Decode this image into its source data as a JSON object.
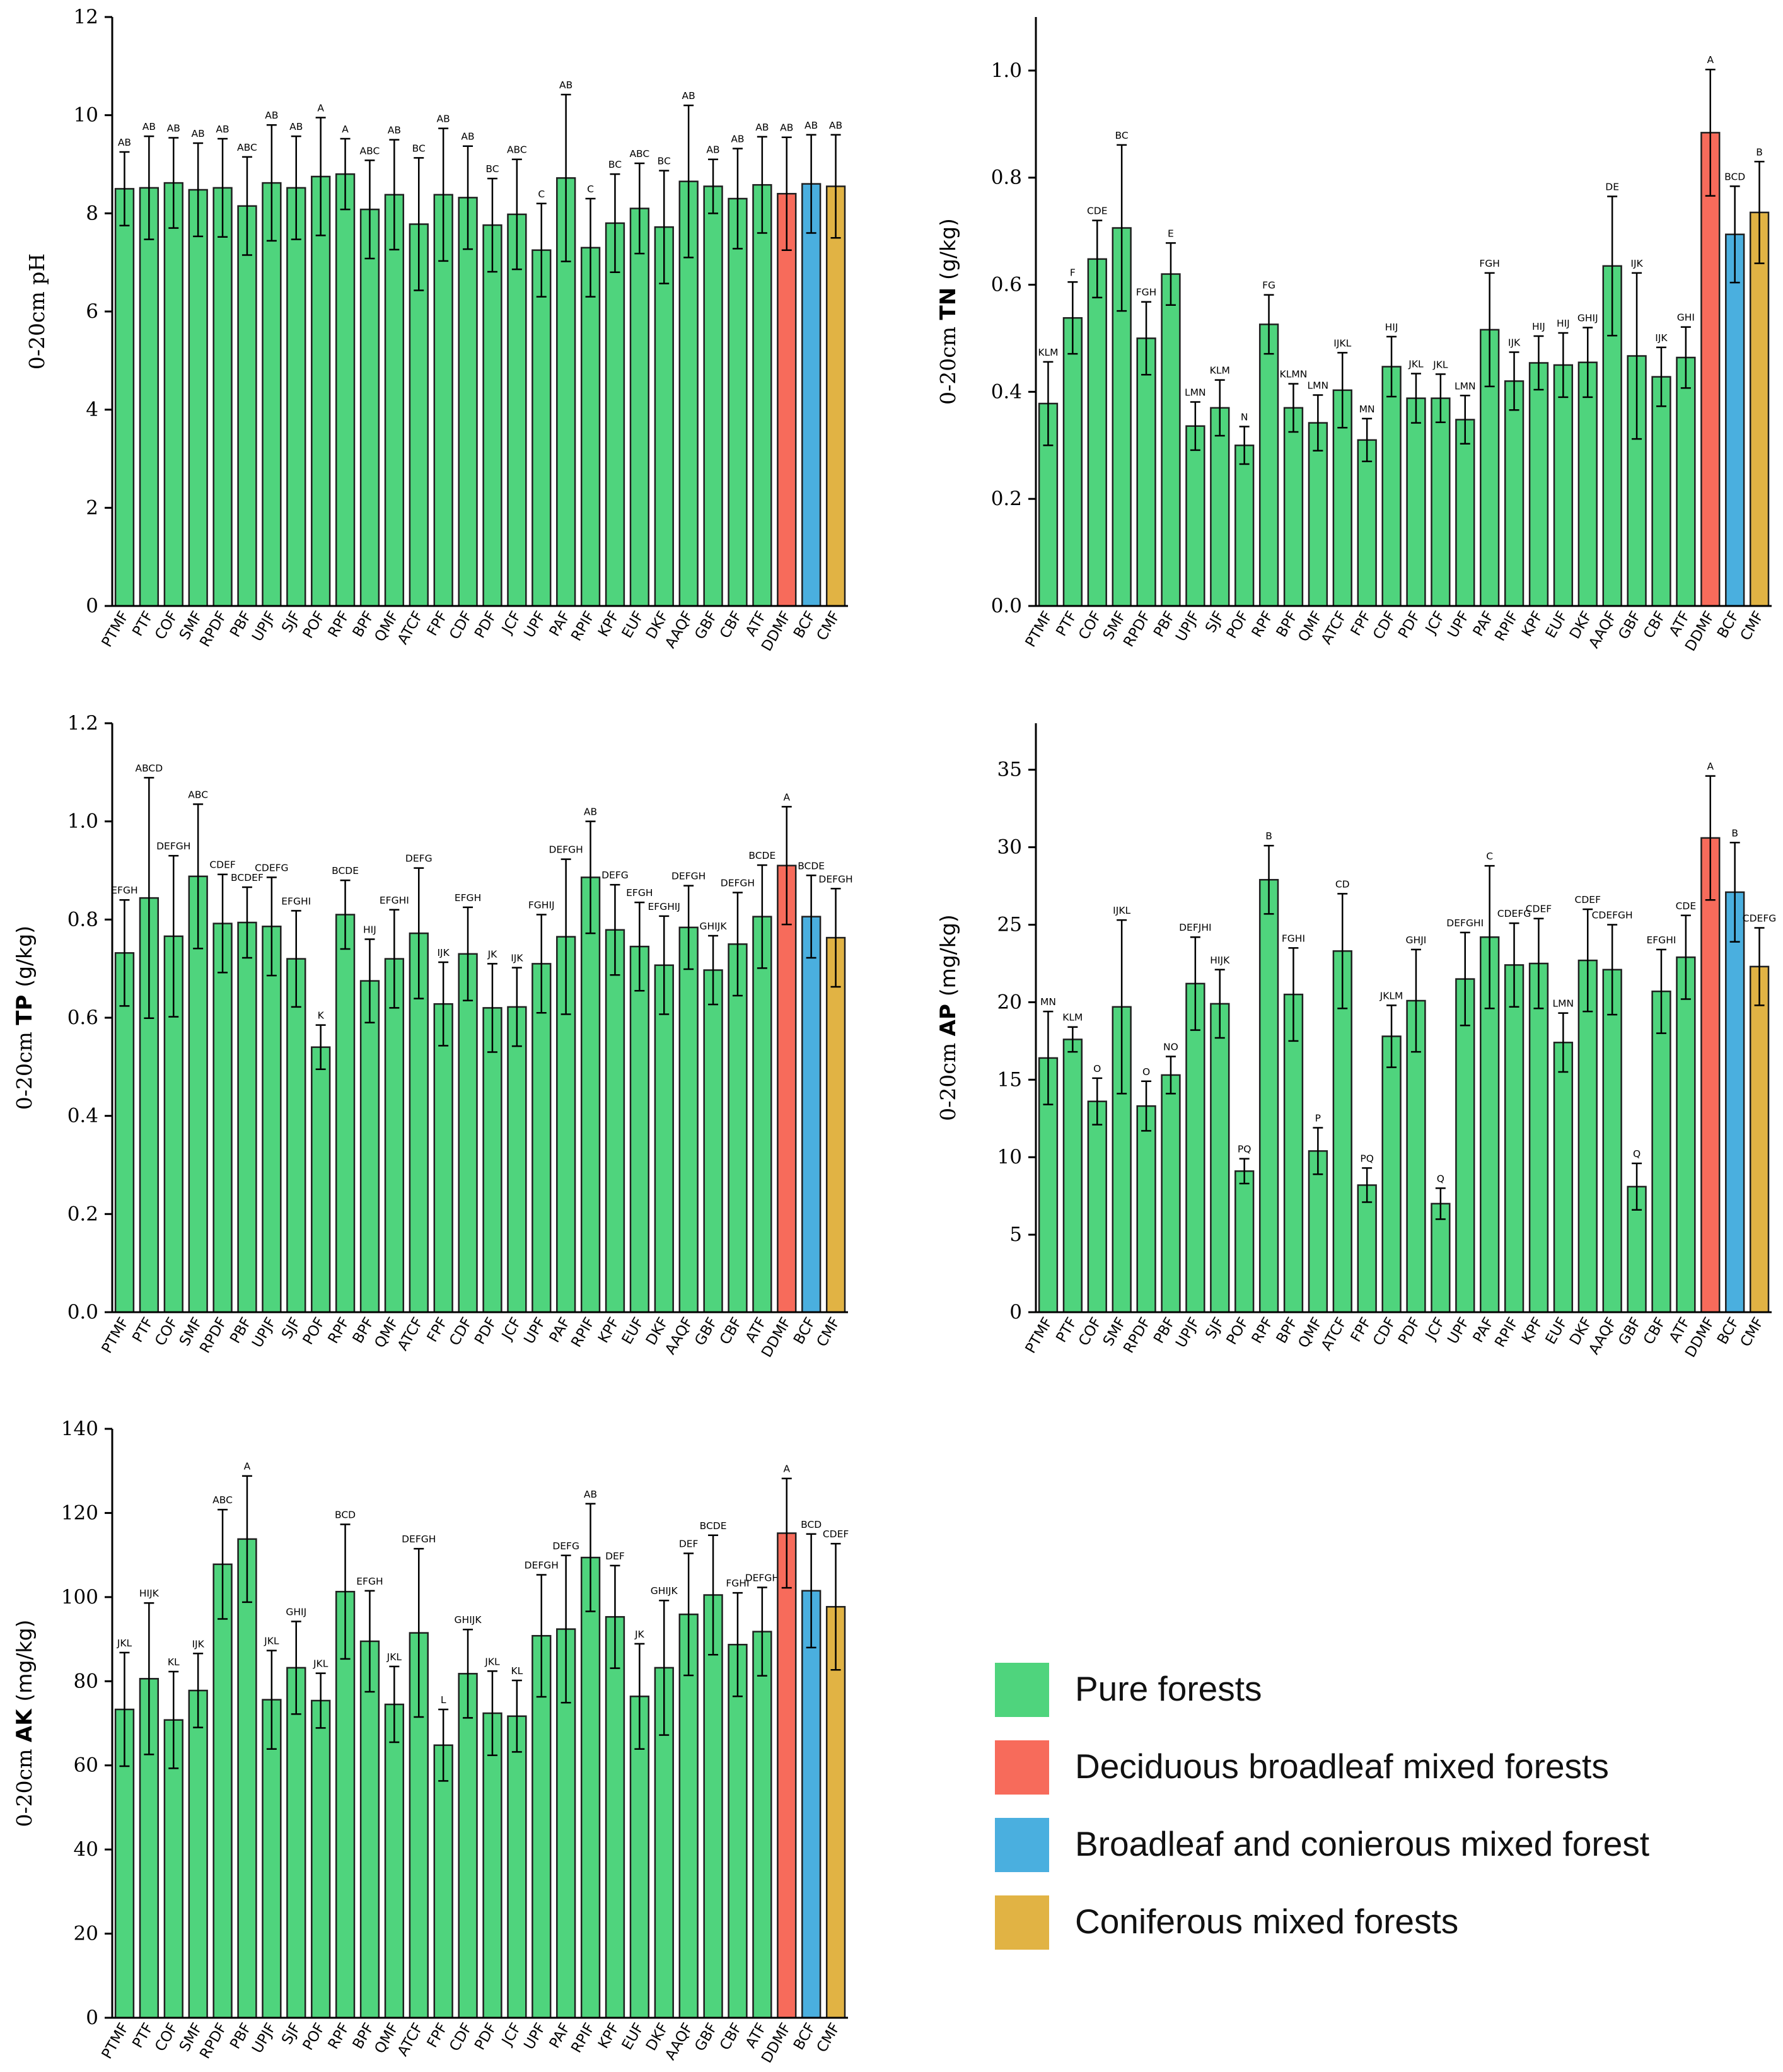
{
  "categories": [
    "PTMF",
    "PTF",
    "COF",
    "SMF",
    "RPDF",
    "PBF",
    "UPJF",
    "SJF",
    "POF",
    "RPF",
    "BPF",
    "QMF",
    "ATCF",
    "FPF",
    "CDF",
    "PDF",
    "JCF",
    "UPF",
    "PAF",
    "RPIF",
    "KPF",
    "EUF",
    "DKF",
    "AAQF",
    "GBF",
    "CBF",
    "ATF",
    "DDMF",
    "BCF",
    "CMF"
  ],
  "groups": [
    "pure",
    "pure",
    "pure",
    "pure",
    "pure",
    "pure",
    "pure",
    "pure",
    "pure",
    "pure",
    "pure",
    "pure",
    "pure",
    "pure",
    "pure",
    "pure",
    "pure",
    "pure",
    "pure",
    "pure",
    "pure",
    "pure",
    "pure",
    "pure",
    "pure",
    "pure",
    "pure",
    "deciduous",
    "broadleaf_coniferous",
    "coniferous"
  ],
  "colors": {
    "pure": "#4fd47d",
    "deciduous": "#f76b5b",
    "broadleaf_coniferous": "#4aafdf",
    "coniferous": "#e1b344"
  },
  "chart_data": [
    {
      "id": "ph",
      "type": "bar",
      "ylabel": {
        "main": "",
        "sub": "0-20cm pH",
        "unit": ""
      },
      "ylim": [
        0,
        12
      ],
      "yticks": [
        0,
        2,
        4,
        6,
        8,
        10,
        12
      ],
      "tick_labels": [
        "0",
        "2",
        "4",
        "6",
        "8",
        "10",
        "12"
      ],
      "values": [
        8.5,
        8.52,
        8.62,
        8.48,
        8.52,
        8.15,
        8.62,
        8.52,
        8.75,
        8.8,
        8.08,
        8.38,
        7.78,
        8.38,
        8.32,
        7.76,
        7.98,
        7.25,
        8.72,
        7.3,
        7.8,
        8.1,
        7.72,
        8.65,
        8.55,
        8.3,
        8.58,
        8.4,
        8.6,
        8.55
      ],
      "errors": [
        0.75,
        1.05,
        0.92,
        0.95,
        1.0,
        1.0,
        1.18,
        1.05,
        1.2,
        0.72,
        1.0,
        1.12,
        1.35,
        1.35,
        1.05,
        0.95,
        1.12,
        0.95,
        1.7,
        1.0,
        1.0,
        0.92,
        1.15,
        1.55,
        0.55,
        1.02,
        0.98,
        1.15,
        1.0,
        1.05
      ],
      "letters": [
        "AB",
        "AB",
        "AB",
        "AB",
        "AB",
        "ABC",
        "AB",
        "AB",
        "A",
        "A",
        "ABC",
        "AB",
        "BC",
        "AB",
        "AB",
        "BC",
        "ABC",
        "C",
        "AB",
        "C",
        "BC",
        "ABC",
        "BC",
        "AB",
        "AB",
        "AB",
        "AB",
        "AB",
        "AB",
        "AB"
      ]
    },
    {
      "id": "tn",
      "type": "bar",
      "ylabel": {
        "main": "TN",
        "sub": "0-20cm",
        "unit": "(g/kg)"
      },
      "ylim": [
        0,
        1.1
      ],
      "yticks": [
        0,
        0.2,
        0.4,
        0.6,
        0.8,
        1.0
      ],
      "tick_labels": [
        "0.0",
        "0.2",
        "0.4",
        "0.6",
        "0.8",
        "1.0"
      ],
      "values": [
        0.378,
        0.538,
        0.648,
        0.706,
        0.5,
        0.62,
        0.336,
        0.37,
        0.3,
        0.526,
        0.37,
        0.342,
        0.403,
        0.31,
        0.447,
        0.388,
        0.388,
        0.348,
        0.516,
        0.42,
        0.454,
        0.45,
        0.455,
        0.635,
        0.467,
        0.428,
        0.464,
        0.884,
        0.694,
        0.735
      ],
      "errors": [
        0.078,
        0.067,
        0.072,
        0.155,
        0.068,
        0.058,
        0.045,
        0.052,
        0.035,
        0.055,
        0.045,
        0.052,
        0.07,
        0.04,
        0.056,
        0.046,
        0.045,
        0.045,
        0.106,
        0.054,
        0.05,
        0.06,
        0.065,
        0.13,
        0.155,
        0.055,
        0.057,
        0.118,
        0.09,
        0.095
      ],
      "letters": [
        "KLM",
        "F",
        "CDE",
        "BC",
        "FGH",
        "E",
        "LMN",
        "KLM",
        "N",
        "FG",
        "KLMN",
        "LMN",
        "IJKL",
        "MN",
        "HIJ",
        "JKL",
        "JKL",
        "LMN",
        "FGH",
        "IJK",
        "HIJ",
        "HIJ",
        "GHIJ",
        "DE",
        "IJK",
        "IJK",
        "GHI",
        "A",
        "BCD",
        "B"
      ]
    },
    {
      "id": "tp",
      "type": "bar",
      "ylabel": {
        "main": "TP",
        "sub": "0-20cm",
        "unit": "(g/kg)"
      },
      "ylim": [
        0,
        1.2
      ],
      "yticks": [
        0,
        0.2,
        0.4,
        0.6,
        0.8,
        1.0,
        1.2
      ],
      "tick_labels": [
        "0.0",
        "0.2",
        "0.4",
        "0.6",
        "0.8",
        "1.0",
        "1.2"
      ],
      "values": [
        0.732,
        0.844,
        0.766,
        0.888,
        0.792,
        0.794,
        0.786,
        0.72,
        0.54,
        0.81,
        0.675,
        0.72,
        0.772,
        0.628,
        0.73,
        0.62,
        0.622,
        0.71,
        0.765,
        0.886,
        0.779,
        0.745,
        0.707,
        0.784,
        0.697,
        0.75,
        0.806,
        0.91,
        0.806,
        0.763
      ],
      "errors": [
        0.108,
        0.245,
        0.164,
        0.147,
        0.1,
        0.072,
        0.1,
        0.098,
        0.045,
        0.07,
        0.085,
        0.1,
        0.133,
        0.085,
        0.095,
        0.09,
        0.08,
        0.1,
        0.158,
        0.114,
        0.092,
        0.09,
        0.1,
        0.085,
        0.07,
        0.105,
        0.105,
        0.12,
        0.084,
        0.1
      ],
      "letters": [
        "EFGH",
        "ABCD",
        "DEFGH",
        "ABC",
        "CDEF",
        "BCDEF",
        "CDEFG",
        "EFGHI",
        "K",
        "BCDE",
        "HIJ",
        "EFGHI",
        "DEFG",
        "IJK",
        "EFGH",
        "JK",
        "IJK",
        "FGHIJ",
        "DEFGH",
        "AB",
        "DEFG",
        "EFGH",
        "EFGHIJ",
        "DEFGH",
        "GHIJK",
        "DEFGH",
        "BCDE",
        "A",
        "BCDE",
        "DEFGH"
      ]
    },
    {
      "id": "ap",
      "type": "bar",
      "ylabel": {
        "main": "AP",
        "sub": "0-20cm",
        "unit": "(mg/kg)"
      },
      "ylim": [
        0,
        38
      ],
      "yticks": [
        0,
        5,
        10,
        15,
        20,
        25,
        30,
        35
      ],
      "tick_labels": [
        "0",
        "5",
        "10",
        "15",
        "20",
        "25",
        "30",
        "35"
      ],
      "values": [
        16.4,
        17.6,
        13.6,
        19.7,
        13.3,
        15.3,
        21.2,
        19.9,
        9.1,
        27.9,
        20.5,
        10.4,
        23.3,
        8.2,
        17.8,
        20.1,
        7.0,
        21.5,
        24.2,
        22.4,
        22.5,
        17.4,
        22.7,
        22.1,
        8.1,
        20.7,
        22.9,
        30.6,
        27.1,
        22.3
      ],
      "errors": [
        3.0,
        0.8,
        1.5,
        5.6,
        1.6,
        1.2,
        3.0,
        2.2,
        0.8,
        2.2,
        3.0,
        1.5,
        3.7,
        1.1,
        2.0,
        3.3,
        1.0,
        3.0,
        4.6,
        2.7,
        2.9,
        1.9,
        3.3,
        2.9,
        1.5,
        2.7,
        2.7,
        4.0,
        3.2,
        2.5
      ],
      "letters": [
        "MN",
        "KLM",
        "O",
        "IJKL",
        "O",
        "NO",
        "DEFJHI",
        "HIJK",
        "PQ",
        "B",
        "FGHI",
        "P",
        "CD",
        "PQ",
        "JKLM",
        "GHJI",
        "Q",
        "DEFGHI",
        "C",
        "CDEFG",
        "CDEF",
        "LMN",
        "CDEF",
        "CDEFGH",
        "Q",
        "EFGHI",
        "CDE",
        "A",
        "B",
        "CDEFG"
      ]
    },
    {
      "id": "ak",
      "type": "bar",
      "ylabel": {
        "main": "AK",
        "sub": "0-20cm",
        "unit": "(mg/kg)"
      },
      "ylim": [
        0,
        140
      ],
      "yticks": [
        0,
        20,
        40,
        60,
        80,
        100,
        120,
        140
      ],
      "tick_labels": [
        "0",
        "20",
        "40",
        "60",
        "80",
        "100",
        "120",
        "140"
      ],
      "values": [
        73.3,
        80.6,
        70.8,
        77.8,
        107.8,
        113.8,
        75.6,
        83.2,
        75.4,
        101.3,
        89.5,
        74.5,
        91.5,
        64.8,
        81.8,
        72.4,
        71.7,
        90.8,
        92.4,
        109.4,
        95.3,
        76.4,
        83.2,
        95.9,
        100.5,
        88.7,
        91.8,
        115.2,
        101.5,
        97.7
      ],
      "errors": [
        13.5,
        18.0,
        11.5,
        8.8,
        13.0,
        15.0,
        11.7,
        11.0,
        6.5,
        16.0,
        12.0,
        9.0,
        20.0,
        8.5,
        10.5,
        10.0,
        8.5,
        14.5,
        17.5,
        12.8,
        12.2,
        12.5,
        16.0,
        14.5,
        14.2,
        12.3,
        10.5,
        13.0,
        13.5,
        15.0
      ],
      "letters": [
        "JKL",
        "HIJK",
        "KL",
        "IJK",
        "ABC",
        "A",
        "JKL",
        "GHIJ",
        "JKL",
        "BCD",
        "EFGH",
        "JKL",
        "DEFGH",
        "L",
        "GHIJK",
        "JKL",
        "KL",
        "DEFGH",
        "DEFG",
        "AB",
        "DEF",
        "JK",
        "GHIJK",
        "DEF",
        "BCDE",
        "FGHI",
        "DEFGH",
        "A",
        "BCD",
        "CDEF"
      ]
    }
  ],
  "legend": [
    {
      "label": "Pure forests",
      "color": "#4fd47d"
    },
    {
      "label": "Deciduous broadleaf mixed forests",
      "color": "#f76b5b"
    },
    {
      "label": "Broadleaf and conierous mixed forest",
      "color": "#4aafdf"
    },
    {
      "label": "Coniferous mixed forests",
      "color": "#e1b344"
    }
  ]
}
